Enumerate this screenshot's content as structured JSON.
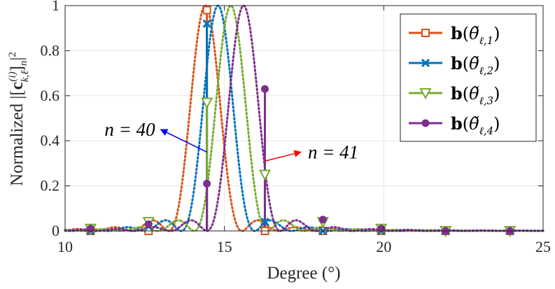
{
  "chart_data": {
    "type": "line",
    "xlabel": "Degree (°)",
    "ylabel": "Normalized |[c_{k,ℓ}^{(i)}]_n|²",
    "xlim": [
      10,
      25
    ],
    "ylim": [
      0,
      1
    ],
    "xticks": [
      "10",
      "15",
      "20",
      "25"
    ],
    "yticks": [
      "0",
      "0.2",
      "0.4",
      "0.6",
      "0.8",
      "1"
    ],
    "grid": true,
    "legend_position": "top-right",
    "series": [
      {
        "name": "b(θ̃_{ℓ,1})",
        "legend_parts": [
          "b(",
          "θ̃",
          "ℓ,1",
          ")"
        ],
        "color": "#D95319",
        "marker": "square",
        "center": 14.4,
        "width": 1.15,
        "sample_x": [
          10.8,
          12.62,
          14.45,
          16.27,
          18.09,
          19.92,
          21.94,
          23.96
        ],
        "sample_y": [
          0.0,
          0.0,
          0.98,
          0.0,
          0.0,
          0.0,
          0.0,
          0.0
        ]
      },
      {
        "name": "b(θ̃_{ℓ,2})",
        "legend_parts": [
          "b(",
          "θ̃",
          "ℓ,2",
          ")"
        ],
        "color": "#0072BD",
        "marker": "x",
        "center": 14.8,
        "width": 1.15,
        "sample_x": [
          10.8,
          12.62,
          14.45,
          16.27,
          18.09,
          19.92,
          21.94,
          23.96
        ],
        "sample_y": [
          0.0,
          0.02,
          0.92,
          0.04,
          0.0,
          0.0,
          0.0,
          0.0
        ]
      },
      {
        "name": "b(θ̃_{ℓ,3})",
        "legend_parts": [
          "b(",
          "θ̃",
          "ℓ,3",
          ")"
        ],
        "color": "#77AC30",
        "marker": "triangle-down",
        "center": 15.2,
        "width": 1.15,
        "sample_x": [
          10.8,
          12.62,
          14.45,
          16.27,
          18.09,
          19.92,
          21.94,
          23.96
        ],
        "sample_y": [
          0.01,
          0.04,
          0.57,
          0.25,
          0.04,
          0.01,
          0.0,
          0.0
        ]
      },
      {
        "name": "b(θ̃_{ℓ,4})",
        "legend_parts": [
          "b(",
          "θ̃",
          "ℓ,4",
          ")"
        ],
        "color": "#7E2F8E",
        "marker": "circle",
        "center": 15.6,
        "width": 1.15,
        "sample_x": [
          10.8,
          12.62,
          14.45,
          16.27,
          18.09,
          19.92,
          21.94,
          23.96
        ],
        "sample_y": [
          0.01,
          0.03,
          0.21,
          0.63,
          0.05,
          0.01,
          0.0,
          0.0
        ]
      }
    ],
    "annotations": [
      {
        "text": "n = 40",
        "arrow_color": "#0000FF",
        "arrow_from": [
          14.45,
          0.35
        ],
        "arrow_to": [
          13.0,
          0.45
        ]
      },
      {
        "text": "n = 41",
        "arrow_color": "#FF0000",
        "arrow_from": [
          16.27,
          0.31
        ],
        "arrow_to": [
          17.4,
          0.35
        ]
      }
    ]
  }
}
